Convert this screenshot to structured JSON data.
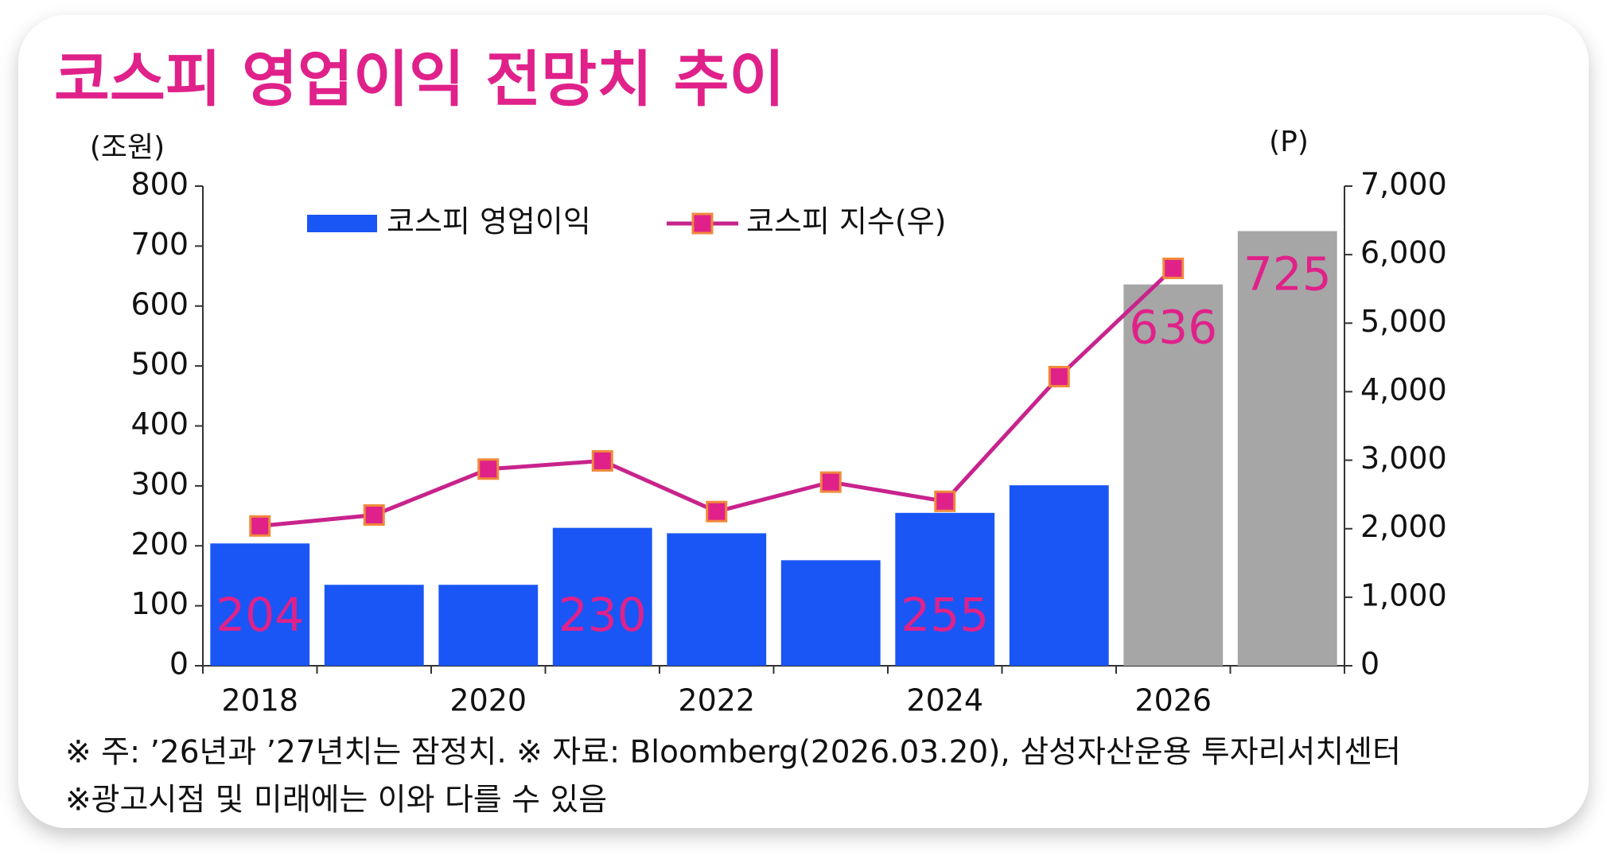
{
  "chart_data": {
    "type": "bar-line",
    "title": "코스피 영업이익 전망치 추이",
    "y_unit": "(조원)",
    "y2_unit": "(P)",
    "categories": [
      "2018",
      null,
      "2020",
      null,
      "2022",
      null,
      "2024",
      null,
      "2026",
      null
    ],
    "series": [
      {
        "name": "코스피 영업이익",
        "type": "bar",
        "color": "#1a56f5",
        "colors": [
          "#1a56f5",
          "#1a56f5",
          "#1a56f5",
          "#1a56f5",
          "#1a56f5",
          "#1a56f5",
          "#1a56f5",
          "#1a56f5",
          "#a6a6a6",
          "#a6a6a6"
        ],
        "values": [
          204,
          135,
          135,
          230,
          221,
          176,
          255,
          301,
          636,
          725
        ],
        "value_labels": [
          "204",
          null,
          null,
          "230",
          null,
          null,
          "255",
          null,
          "636",
          "725"
        ]
      },
      {
        "name": "코스피 지수(우)",
        "type": "line",
        "axis": "y2",
        "color": "#c8238c",
        "marker_color": "#e0218a",
        "marker_edge": "#f0893c",
        "values": [
          2040,
          2200,
          2870,
          2990,
          2250,
          2680,
          2400,
          4220,
          5800,
          null
        ]
      }
    ],
    "label_color": "#e0218a",
    "ylim": [
      0,
      800
    ],
    "yticks": [
      0,
      100,
      200,
      300,
      400,
      500,
      600,
      700,
      800
    ],
    "y2lim": [
      0,
      7000
    ],
    "y2ticks": [
      0,
      {
        "value": 1000,
        "label": "1,000"
      },
      {
        "value": 2000,
        "label": "2,000"
      },
      {
        "value": 3000,
        "label": "3,000"
      },
      {
        "value": 4000,
        "label": "4,000"
      },
      {
        "value": 5000,
        "label": "5,000"
      },
      {
        "value": 6000,
        "label": "6,000"
      },
      {
        "value": 7000,
        "label": "7,000"
      }
    ],
    "notes": [
      "※ 주: ’26년과 ’27년치는 잠정치. ※ 자료: Bloomberg(2026.03.20),  삼성자산운용 투자리서치센터",
      "※광고시점 및 미래에는 이와 다를 수 있음"
    ]
  }
}
